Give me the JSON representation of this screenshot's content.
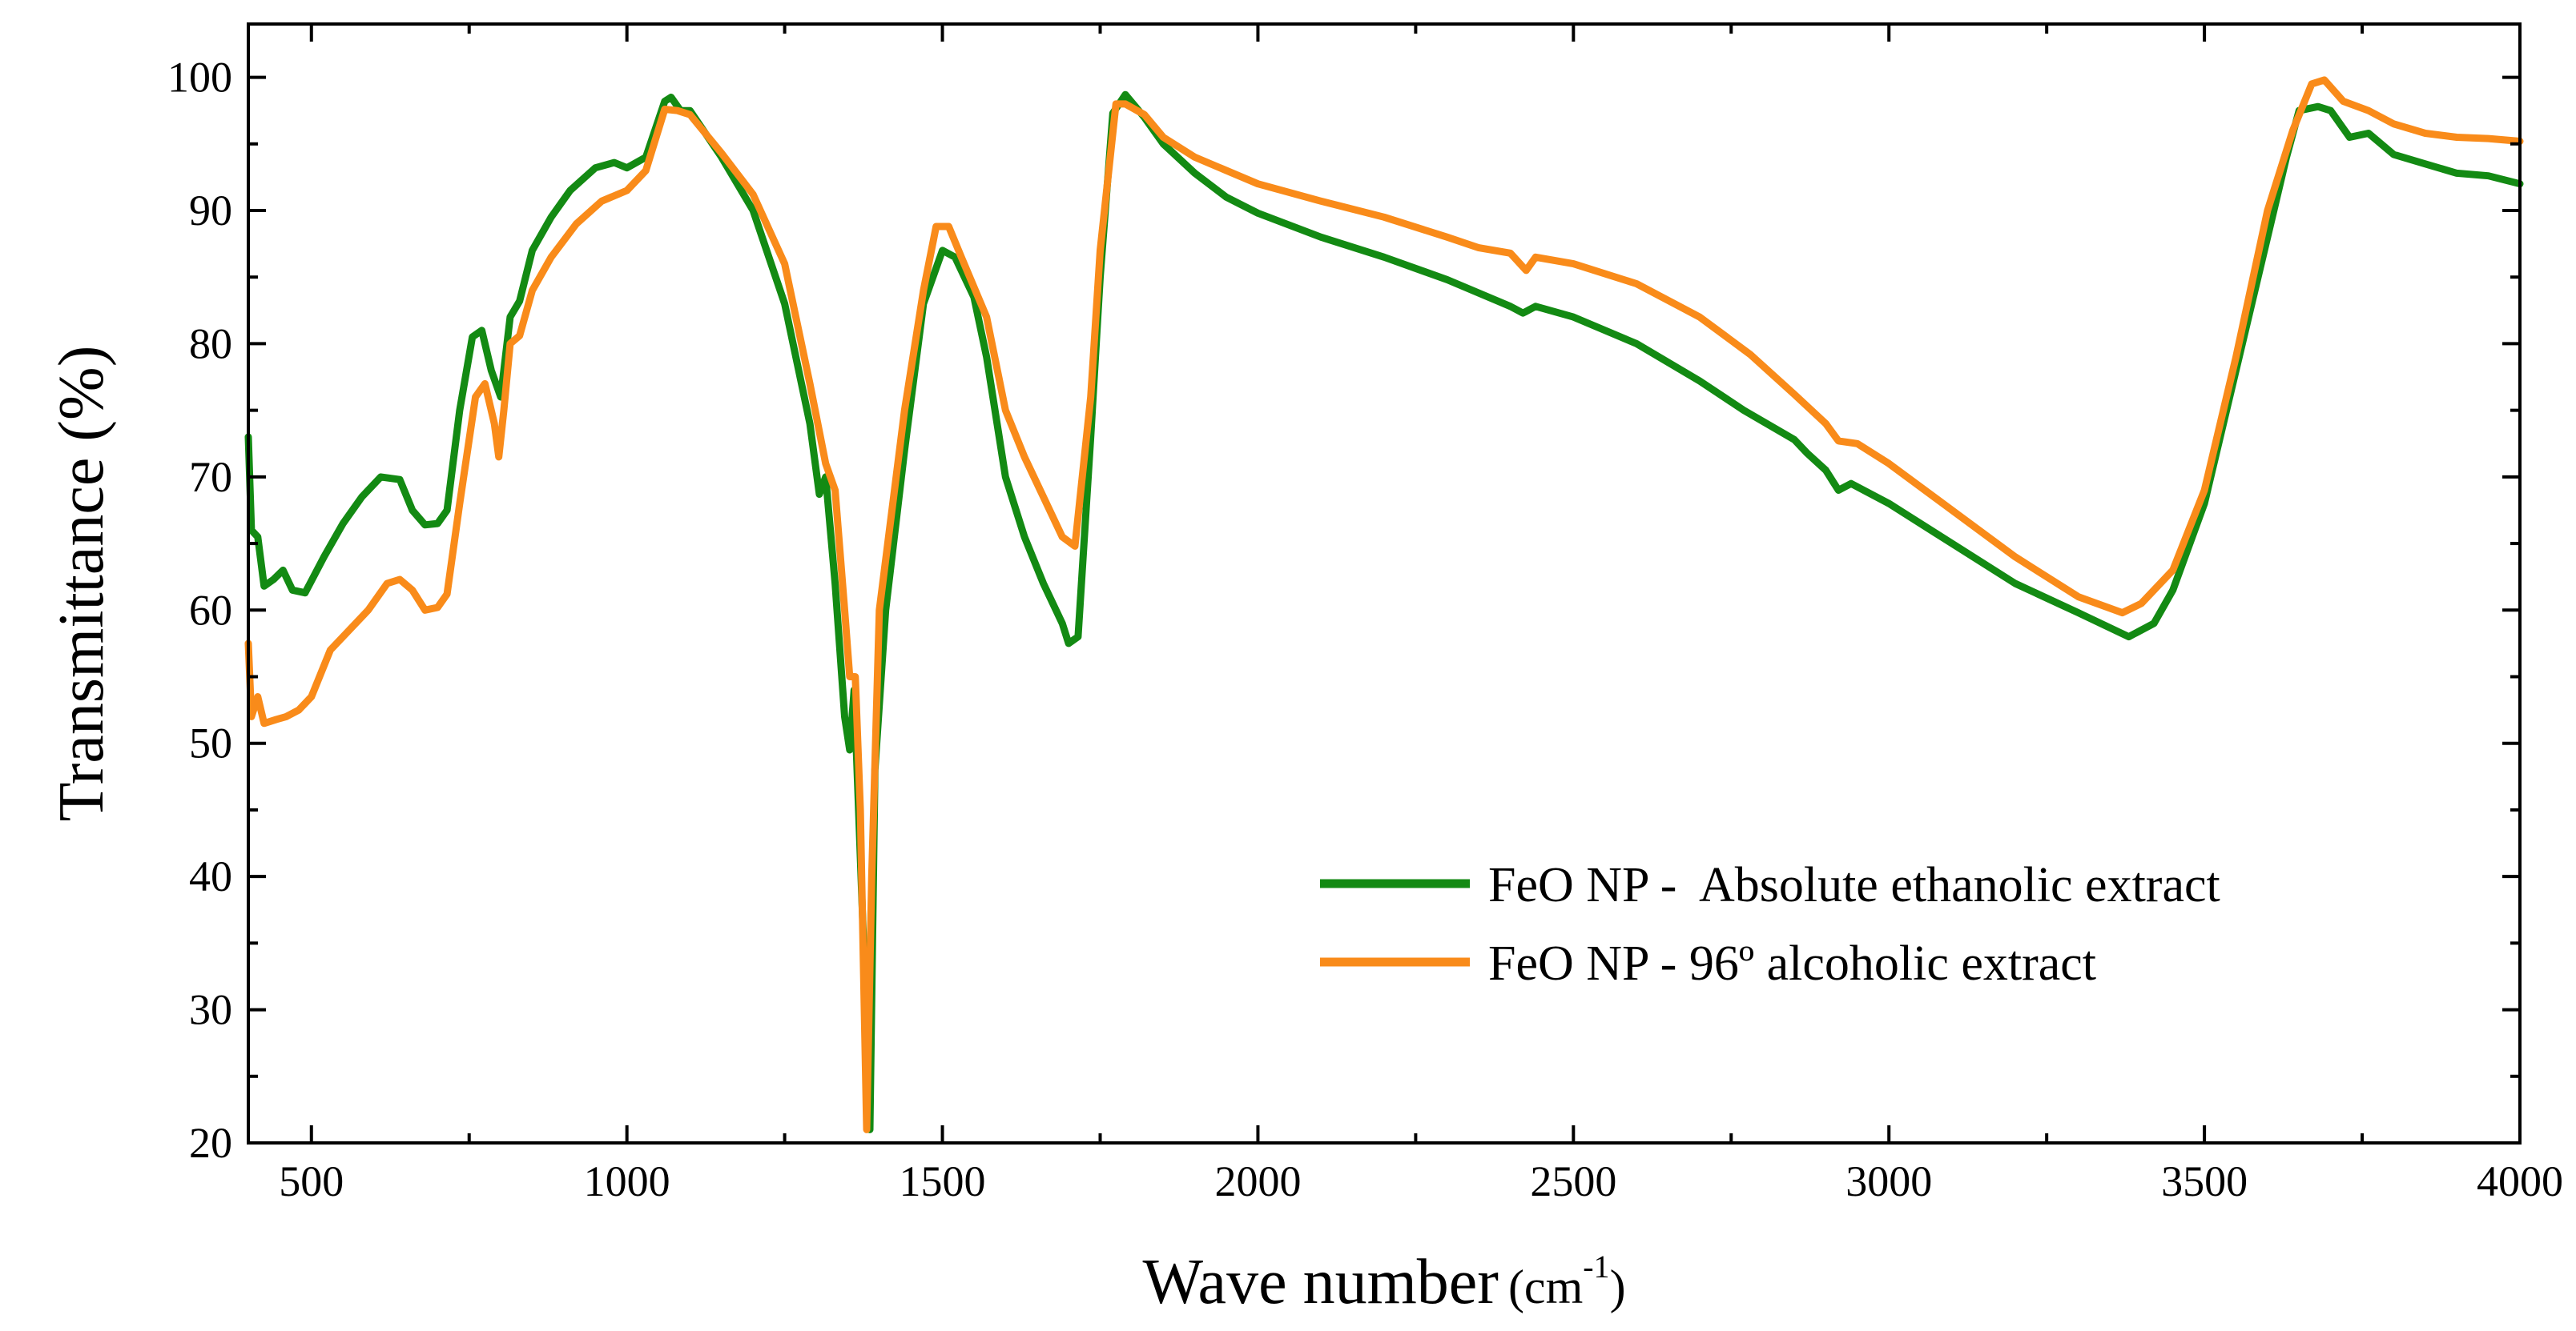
{
  "chart_data": {
    "type": "line",
    "title": "",
    "xlabel": "Wave number (cm-1)",
    "xlabel_main": "Wave number",
    "xlabel_unit_open": "(cm",
    "xlabel_unit_sup": "-1",
    "xlabel_unit_close": ")",
    "ylabel": "Transmittance (%)",
    "xlim": [
      400,
      4000
    ],
    "ylim": [
      20,
      104
    ],
    "xticks": [
      500,
      1000,
      1500,
      2000,
      2500,
      3000,
      3500,
      4000
    ],
    "yticks": [
      20,
      30,
      40,
      50,
      60,
      70,
      80,
      90,
      100
    ],
    "legend_position": "lower-right",
    "series": [
      {
        "name": "FeO NP -  Absolute ethanolic extract",
        "color": "#138a13",
        "points": [
          [
            400,
            73
          ],
          [
            405,
            66
          ],
          [
            415,
            65.5
          ],
          [
            425,
            61.8
          ],
          [
            440,
            62.3
          ],
          [
            455,
            63
          ],
          [
            470,
            61.5
          ],
          [
            490,
            61.3
          ],
          [
            520,
            64
          ],
          [
            550,
            66.5
          ],
          [
            580,
            68.5
          ],
          [
            610,
            70
          ],
          [
            640,
            69.8
          ],
          [
            660,
            67.5
          ],
          [
            680,
            66.4
          ],
          [
            700,
            66.5
          ],
          [
            715,
            67.5
          ],
          [
            735,
            75
          ],
          [
            755,
            80.5
          ],
          [
            770,
            81
          ],
          [
            785,
            78
          ],
          [
            800,
            76
          ],
          [
            815,
            82
          ],
          [
            830,
            83.2
          ],
          [
            850,
            87
          ],
          [
            880,
            89.5
          ],
          [
            910,
            91.5
          ],
          [
            950,
            93.2
          ],
          [
            980,
            93.6
          ],
          [
            1000,
            93.2
          ],
          [
            1030,
            94
          ],
          [
            1060,
            98.2
          ],
          [
            1070,
            98.5
          ],
          [
            1085,
            97.5
          ],
          [
            1100,
            97.5
          ],
          [
            1150,
            94
          ],
          [
            1200,
            90
          ],
          [
            1250,
            83
          ],
          [
            1290,
            74
          ],
          [
            1305,
            68.7
          ],
          [
            1315,
            70
          ],
          [
            1330,
            62
          ],
          [
            1345,
            52
          ],
          [
            1353,
            49.5
          ],
          [
            1360,
            54
          ],
          [
            1375,
            35
          ],
          [
            1385,
            21
          ],
          [
            1393,
            48
          ],
          [
            1410,
            60
          ],
          [
            1440,
            72
          ],
          [
            1470,
            83
          ],
          [
            1500,
            87
          ],
          [
            1520,
            86.5
          ],
          [
            1550,
            83.5
          ],
          [
            1570,
            79
          ],
          [
            1600,
            70
          ],
          [
            1630,
            65.5
          ],
          [
            1660,
            62
          ],
          [
            1690,
            59
          ],
          [
            1700,
            57.5
          ],
          [
            1715,
            58
          ],
          [
            1735,
            73
          ],
          [
            1750,
            85
          ],
          [
            1770,
            97.3
          ],
          [
            1790,
            98.7
          ],
          [
            1820,
            97
          ],
          [
            1850,
            95
          ],
          [
            1900,
            92.8
          ],
          [
            1950,
            91
          ],
          [
            2000,
            89.8
          ],
          [
            2100,
            88
          ],
          [
            2200,
            86.5
          ],
          [
            2300,
            84.8
          ],
          [
            2400,
            82.8
          ],
          [
            2420,
            82.3
          ],
          [
            2440,
            82.8
          ],
          [
            2500,
            82
          ],
          [
            2600,
            80
          ],
          [
            2700,
            77.2
          ],
          [
            2770,
            75
          ],
          [
            2850,
            72.8
          ],
          [
            2870,
            71.8
          ],
          [
            2900,
            70.5
          ],
          [
            2920,
            69
          ],
          [
            2940,
            69.5
          ],
          [
            3000,
            68
          ],
          [
            3100,
            65
          ],
          [
            3200,
            62
          ],
          [
            3300,
            59.8
          ],
          [
            3380,
            58
          ],
          [
            3420,
            59
          ],
          [
            3450,
            61.5
          ],
          [
            3500,
            68
          ],
          [
            3550,
            78
          ],
          [
            3600,
            88
          ],
          [
            3630,
            94
          ],
          [
            3650,
            97.5
          ],
          [
            3680,
            97.8
          ],
          [
            3700,
            97.5
          ],
          [
            3730,
            95.5
          ],
          [
            3760,
            95.8
          ],
          [
            3800,
            94.2
          ],
          [
            3850,
            93.5
          ],
          [
            3900,
            92.8
          ],
          [
            3950,
            92.6
          ],
          [
            4000,
            92
          ]
        ]
      },
      {
        "name": "FeO NP - 96º alcoholic extract",
        "color": "#f98b1a",
        "points": [
          [
            400,
            57.5
          ],
          [
            405,
            52
          ],
          [
            415,
            53.5
          ],
          [
            425,
            51.5
          ],
          [
            445,
            51.8
          ],
          [
            460,
            52
          ],
          [
            480,
            52.5
          ],
          [
            500,
            53.5
          ],
          [
            530,
            57
          ],
          [
            560,
            58.5
          ],
          [
            590,
            60
          ],
          [
            620,
            62
          ],
          [
            640,
            62.3
          ],
          [
            660,
            61.5
          ],
          [
            680,
            60
          ],
          [
            700,
            60.2
          ],
          [
            715,
            61.2
          ],
          [
            735,
            68
          ],
          [
            760,
            76
          ],
          [
            775,
            77
          ],
          [
            790,
            74
          ],
          [
            797,
            71.5
          ],
          [
            805,
            75
          ],
          [
            815,
            80
          ],
          [
            830,
            80.6
          ],
          [
            850,
            84
          ],
          [
            880,
            86.5
          ],
          [
            920,
            89
          ],
          [
            960,
            90.7
          ],
          [
            1000,
            91.5
          ],
          [
            1030,
            93
          ],
          [
            1060,
            97.6
          ],
          [
            1080,
            97.5
          ],
          [
            1100,
            97.2
          ],
          [
            1150,
            94.3
          ],
          [
            1200,
            91.2
          ],
          [
            1250,
            86
          ],
          [
            1290,
            77
          ],
          [
            1315,
            71
          ],
          [
            1330,
            69
          ],
          [
            1345,
            60
          ],
          [
            1353,
            55
          ],
          [
            1362,
            55
          ],
          [
            1370,
            45
          ],
          [
            1380,
            21
          ],
          [
            1388,
            40
          ],
          [
            1400,
            60
          ],
          [
            1440,
            75
          ],
          [
            1470,
            84
          ],
          [
            1490,
            88.8
          ],
          [
            1510,
            88.8
          ],
          [
            1530,
            86.5
          ],
          [
            1570,
            82
          ],
          [
            1600,
            75
          ],
          [
            1630,
            71.5
          ],
          [
            1660,
            68.5
          ],
          [
            1690,
            65.5
          ],
          [
            1710,
            64.8
          ],
          [
            1735,
            76
          ],
          [
            1750,
            87
          ],
          [
            1775,
            98
          ],
          [
            1790,
            98
          ],
          [
            1820,
            97.2
          ],
          [
            1850,
            95.5
          ],
          [
            1900,
            94
          ],
          [
            2000,
            92
          ],
          [
            2100,
            90.7
          ],
          [
            2200,
            89.5
          ],
          [
            2300,
            88
          ],
          [
            2350,
            87.2
          ],
          [
            2400,
            86.8
          ],
          [
            2425,
            85.5
          ],
          [
            2440,
            86.5
          ],
          [
            2500,
            86
          ],
          [
            2600,
            84.5
          ],
          [
            2700,
            82
          ],
          [
            2780,
            79.2
          ],
          [
            2850,
            76.2
          ],
          [
            2900,
            74
          ],
          [
            2920,
            72.7
          ],
          [
            2950,
            72.5
          ],
          [
            3000,
            71
          ],
          [
            3100,
            67.5
          ],
          [
            3200,
            64
          ],
          [
            3300,
            61
          ],
          [
            3370,
            59.8
          ],
          [
            3400,
            60.5
          ],
          [
            3450,
            63
          ],
          [
            3500,
            69
          ],
          [
            3550,
            79
          ],
          [
            3600,
            90
          ],
          [
            3640,
            96
          ],
          [
            3670,
            99.5
          ],
          [
            3690,
            99.8
          ],
          [
            3720,
            98.2
          ],
          [
            3760,
            97.5
          ],
          [
            3800,
            96.5
          ],
          [
            3850,
            95.8
          ],
          [
            3900,
            95.5
          ],
          [
            3950,
            95.4
          ],
          [
            4000,
            95.2
          ]
        ]
      }
    ]
  }
}
